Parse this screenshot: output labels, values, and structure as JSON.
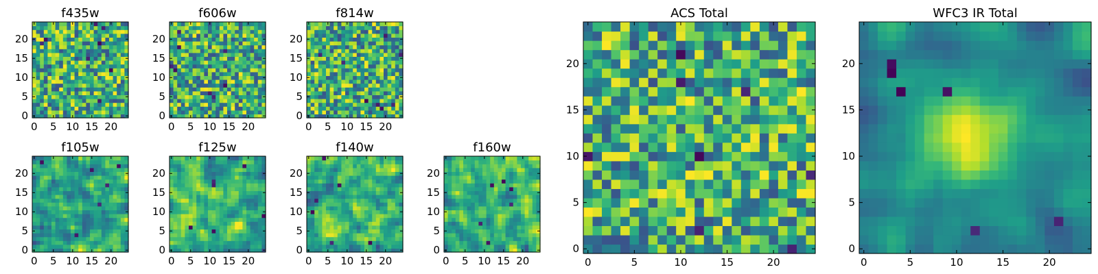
{
  "figure": {
    "background": "#ffffff",
    "colormap": "viridis"
  },
  "chart_data": [
    {
      "type": "heatmap",
      "title": "f435w",
      "grid": [
        25,
        25
      ],
      "xticks": [
        "0",
        "5",
        "10",
        "15",
        "20"
      ],
      "yticks": [
        "0",
        "5",
        "10",
        "15",
        "20"
      ],
      "seed": 11,
      "style": "noise",
      "colorscale": "viridis"
    },
    {
      "type": "heatmap",
      "title": "f606w",
      "grid": [
        25,
        25
      ],
      "xticks": [
        "0",
        "5",
        "10",
        "15",
        "20"
      ],
      "yticks": [
        "0",
        "5",
        "10",
        "15",
        "20"
      ],
      "seed": 23,
      "style": "noise",
      "colorscale": "viridis"
    },
    {
      "type": "heatmap",
      "title": "f814w",
      "grid": [
        25,
        25
      ],
      "xticks": [
        "0",
        "5",
        "10",
        "15",
        "20"
      ],
      "yticks": [
        "0",
        "5",
        "10",
        "15",
        "20"
      ],
      "seed": 37,
      "style": "noise",
      "colorscale": "viridis"
    },
    {
      "type": "heatmap",
      "title": "f105w",
      "grid": [
        25,
        25
      ],
      "xticks": [
        "0",
        "5",
        "10",
        "15",
        "20"
      ],
      "yticks": [
        "0",
        "5",
        "10",
        "15",
        "20"
      ],
      "seed": 41,
      "style": "smooth",
      "colorscale": "viridis"
    },
    {
      "type": "heatmap",
      "title": "f125w",
      "grid": [
        25,
        25
      ],
      "xticks": [
        "0",
        "5",
        "10",
        "15",
        "20"
      ],
      "yticks": [
        "0",
        "5",
        "10",
        "15",
        "20"
      ],
      "seed": 53,
      "style": "smooth",
      "colorscale": "viridis"
    },
    {
      "type": "heatmap",
      "title": "f140w",
      "grid": [
        25,
        25
      ],
      "xticks": [
        "0",
        "5",
        "10",
        "15",
        "20"
      ],
      "yticks": [
        "0",
        "5",
        "10",
        "15",
        "20"
      ],
      "seed": 67,
      "style": "smooth",
      "colorscale": "viridis"
    },
    {
      "type": "heatmap",
      "title": "f160w",
      "grid": [
        25,
        25
      ],
      "xticks": [
        "0",
        "5",
        "10",
        "15",
        "20"
      ],
      "yticks": [
        "0",
        "5",
        "10",
        "15",
        "20"
      ],
      "seed": 79,
      "style": "smooth",
      "colorscale": "viridis"
    },
    {
      "type": "heatmap",
      "title": "ACS Total",
      "grid": [
        25,
        25
      ],
      "xticks": [
        "0",
        "5",
        "10",
        "15",
        "20"
      ],
      "yticks": [
        "0",
        "5",
        "10",
        "15",
        "20"
      ],
      "seed": 97,
      "style": "noise",
      "colorscale": "viridis"
    },
    {
      "type": "heatmap",
      "title": "WFC3 IR Total",
      "grid": [
        25,
        25
      ],
      "xticks": [
        "0",
        "5",
        "10",
        "15",
        "20"
      ],
      "yticks": [
        "0",
        "5",
        "10",
        "15",
        "20"
      ],
      "seed": 113,
      "style": "blob",
      "colorscale": "viridis"
    }
  ]
}
